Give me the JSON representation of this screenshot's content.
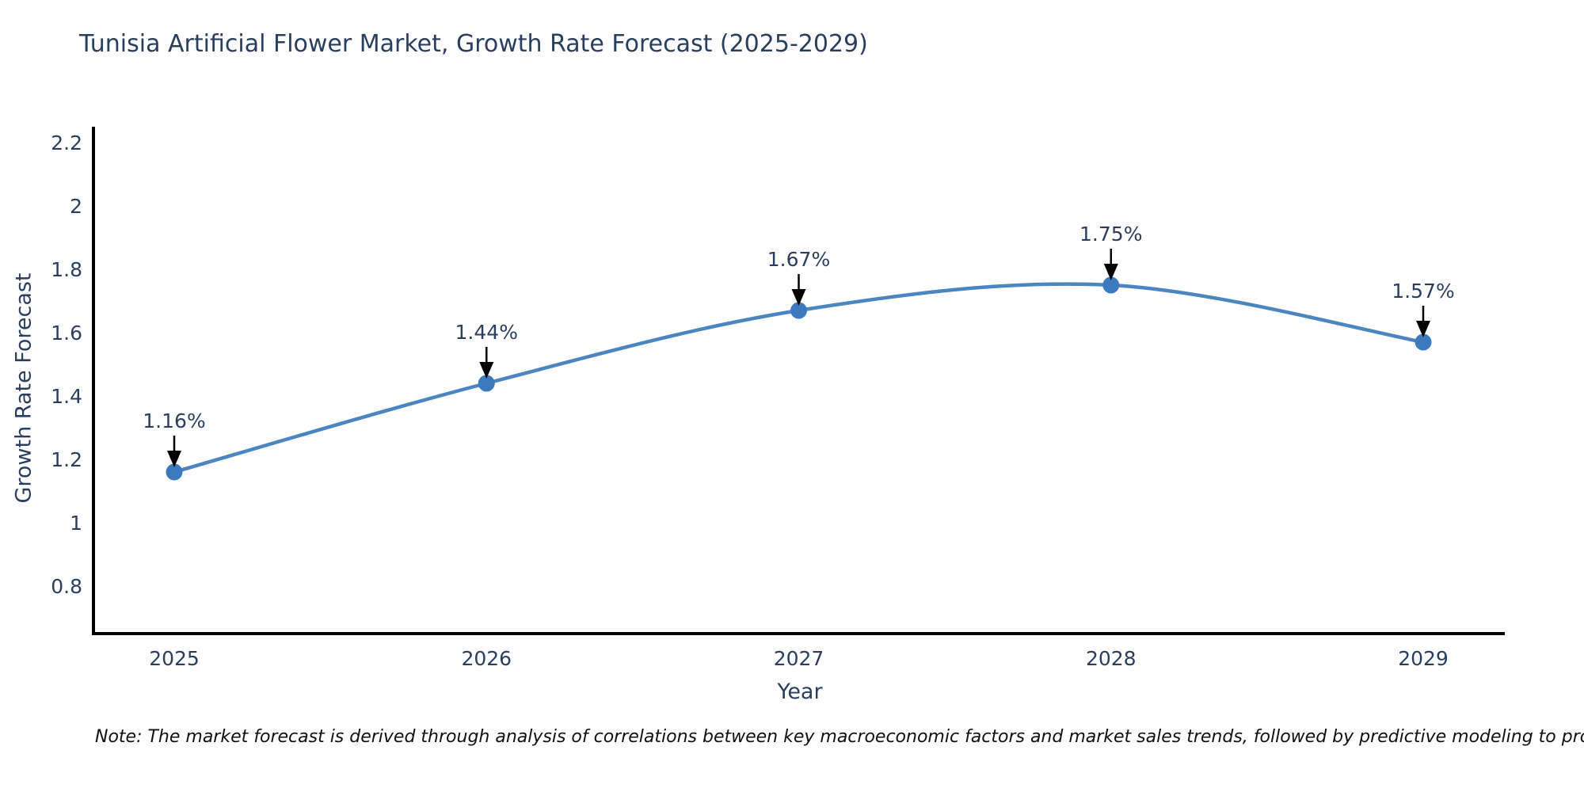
{
  "figure": {
    "note": "Note: The market forecast is derived through analysis of correlations between key macroeconomic factors and market sales trends, followed by predictive modeling to project future sales"
  },
  "chart_data": {
    "type": "line",
    "line_shape": "spline",
    "title": "Tunisia Artificial Flower Market, Growth Rate Forecast (2025-2029)",
    "xlabel": "Year",
    "ylabel": "Growth Rate Forecast",
    "categories": [
      "2025",
      "2026",
      "2027",
      "2028",
      "2029"
    ],
    "values": [
      1.16,
      1.44,
      1.67,
      1.75,
      1.57
    ],
    "point_labels": [
      "1.16%",
      "1.44%",
      "1.67%",
      "1.75%",
      "1.57%"
    ],
    "ytick_labels": [
      "0.8",
      "1",
      "1.2",
      "1.4",
      "1.6",
      "1.8",
      "2",
      "2.2"
    ],
    "ylim": [
      0.65,
      2.25
    ],
    "grid": false,
    "legend": "none",
    "colors": {
      "line": "#4c86c0",
      "marker": "#3d7abd",
      "axis": "#000000",
      "tick_text": "#2a3f5f",
      "annotation_text": "#2a3f5f",
      "annotation_arrow": "#000000",
      "title_text": "#2a3f5f",
      "background": "#ffffff"
    }
  }
}
